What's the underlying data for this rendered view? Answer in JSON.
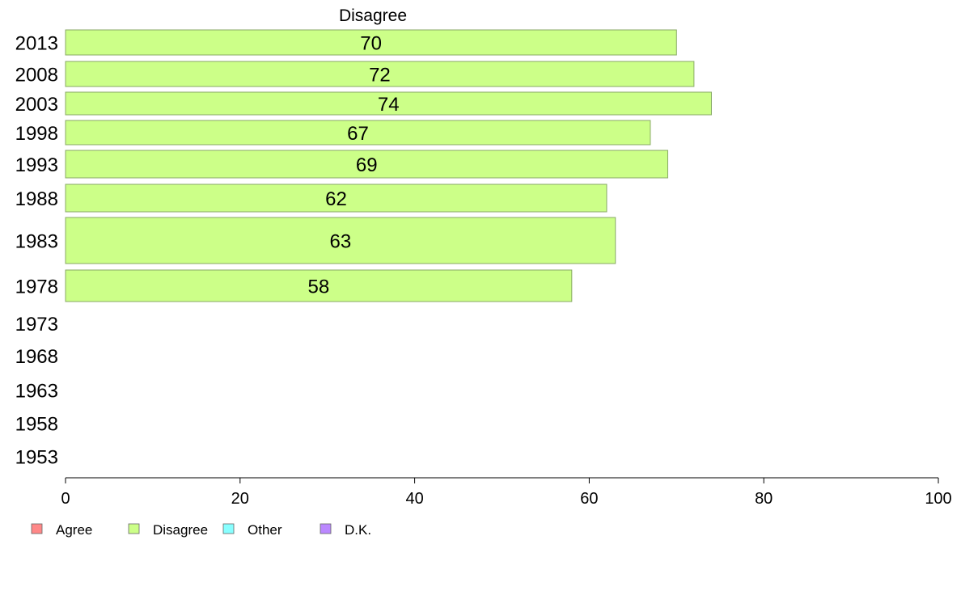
{
  "chart_data": {
    "type": "bar",
    "orientation": "horizontal",
    "title": "Disagree",
    "xlabel": "",
    "ylabel": "",
    "xlim": [
      0,
      100
    ],
    "x_ticks": [
      "0",
      "20",
      "40",
      "60",
      "80",
      "100"
    ],
    "categories": [
      "2013",
      "2008",
      "2003",
      "1998",
      "1993",
      "1988",
      "1983",
      "1978",
      "1973",
      "1968",
      "1963",
      "1958",
      "1953"
    ],
    "series": [
      {
        "name": "Disagree",
        "color": "#ccff88",
        "values": [
          70,
          72,
          74,
          67,
          69,
          62,
          63,
          58,
          null,
          null,
          null,
          null,
          null
        ]
      }
    ],
    "data_labels": [
      "70",
      "72",
      "74",
      "67",
      "69",
      "62",
      "63",
      "58",
      "",
      "",
      "",
      "",
      ""
    ],
    "legend": {
      "placement": "bottom-left",
      "items": [
        {
          "label": "Agree",
          "color": "#ff8888"
        },
        {
          "label": "Disagree",
          "color": "#ccff88"
        },
        {
          "label": "Other",
          "color": "#88ffff"
        },
        {
          "label": "D.K.",
          "color": "#bb88ff"
        }
      ]
    },
    "grid": false
  }
}
